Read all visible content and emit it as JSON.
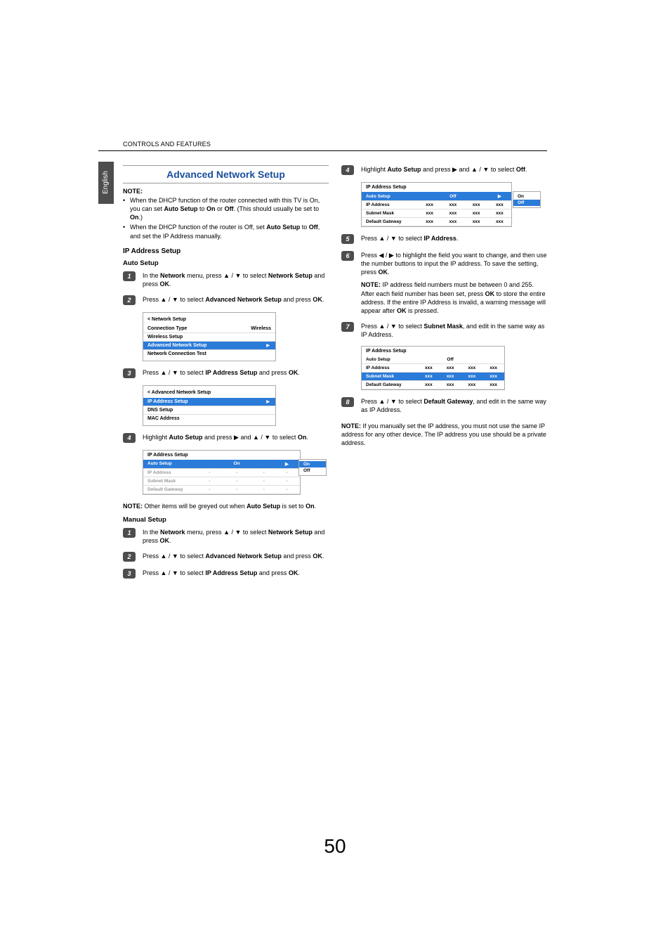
{
  "header": "CONTROLS AND FEATURES",
  "lang_tab": "English",
  "page_number": "50",
  "colors": {
    "title": "#1a4f9c",
    "badge_bg": "#4d4d4d",
    "highlight": "#2b7bd9",
    "text": "#000000",
    "grey": "#999999"
  },
  "left": {
    "title": "Advanced Network Setup",
    "note_label": "NOTE:",
    "note_bullets": [
      "When the DHCP function of the router connected with this TV is On, you can set <b>Auto Setup</b> to <b>On</b> or <b>Off</b>. (This should usually be set to <b>On</b>.)",
      "When the DHCP function of the router is Off, set <b>Auto Setup</b> to <b>Off</b>, and set the IP Address manually."
    ],
    "h_ip": "IP Address Setup",
    "h_auto": "Auto Setup",
    "auto_steps": [
      "In the <b>Network</b> menu, press ▲ / ▼ to select <b>Network Setup</b> and press <b>OK</b>.",
      "Press ▲ / ▼ to select <b>Advanced Network Setup</b> and press <b>OK</b>.",
      "Press ▲ / ▼ to select <b>IP Address Setup</b> and press <b>OK</b>.",
      "Highlight <b>Auto Setup</b> and press ▶ and ▲ / ▼ to select <b>On</b>."
    ],
    "panel_network": {
      "title": "< Network Setup",
      "rows": [
        {
          "label": "Connection Type",
          "value": "Wireless"
        },
        {
          "label": "Wireless Setup",
          "value": ""
        },
        {
          "label": "Advanced Network Setup",
          "value": "",
          "hl": true
        },
        {
          "label": "Network Connection Test",
          "value": ""
        }
      ]
    },
    "panel_advanced": {
      "title": "< Advanced Network Setup",
      "rows": [
        {
          "label": "IP Address Setup",
          "value": "",
          "hl": true
        },
        {
          "label": "DNS Setup",
          "value": ""
        },
        {
          "label": "MAC Address",
          "value": ""
        }
      ]
    },
    "panel_ip_on": {
      "title": "IP Address Setup",
      "popup": [
        "On",
        "Off"
      ],
      "popup_sel": 0,
      "rows": [
        {
          "label": "Auto Setup",
          "v": [
            "",
            "On",
            "",
            ""
          ],
          "hl": true,
          "arrow": true
        },
        {
          "label": "IP Address",
          "v": [
            "-",
            "-",
            "-",
            "-"
          ],
          "grey": true
        },
        {
          "label": "Subnet Mask",
          "v": [
            "-",
            "-",
            "-",
            "-"
          ],
          "grey": true
        },
        {
          "label": "Default Gateway",
          "v": [
            "-",
            "-",
            "-",
            "-"
          ],
          "grey": true
        }
      ]
    },
    "note2": "<b>NOTE:</b> Other items will be greyed out when <b>Auto Setup</b> is set to <b>On</b>.",
    "h_manual": "Manual Setup",
    "manual_steps": [
      "In the <b>Network</b> menu, press ▲ / ▼ to select <b>Network Setup</b> and press <b>OK</b>.",
      "Press ▲ / ▼ to select <b>Advanced Network Setup</b> and press <b>OK</b>.",
      "Press ▲ / ▼ to select <b>IP Address Setup</b> and press <b>OK</b>."
    ]
  },
  "right": {
    "step4": "Highlight <b>Auto Setup</b> and press ▶ and ▲ / ▼ to select <b>Off</b>.",
    "panel_ip_off": {
      "title": "IP Address Setup",
      "popup": [
        "On",
        "Off"
      ],
      "popup_sel": 1,
      "rows": [
        {
          "label": "Auto Setup",
          "v": [
            "",
            "Off",
            "",
            ""
          ],
          "hl": true,
          "arrow": true
        },
        {
          "label": "IP Address",
          "v": [
            "xxx",
            "xxx",
            "xxx",
            "xxx"
          ]
        },
        {
          "label": "Subnet Mask",
          "v": [
            "xxx",
            "xxx",
            "xxx",
            "xxx"
          ]
        },
        {
          "label": "Default Gateway",
          "v": [
            "xxx",
            "xxx",
            "xxx",
            "xxx"
          ]
        }
      ]
    },
    "step5": "Press ▲ / ▼ to select <b>IP Address</b>.",
    "step6": "Press ◀ / ▶ to highlight the field you want to change, and then use the number buttons to input the IP address. To save the setting, press <b>OK</b>.",
    "step6_note": "<b>NOTE:</b> IP address field numbers must be between 0 and 255. After each field number has been set, press <b>OK</b> to store the entire address. If the entire IP Address is invalid, a warning message will appear after <b>OK</b> is pressed.",
    "step7": "Press ▲ / ▼ to select <b>Subnet Mask</b>, and edit in the same way as IP Address.",
    "panel_subnet": {
      "title": "IP Address Setup",
      "rows": [
        {
          "label": "Auto Setup",
          "v": [
            "",
            "Off",
            "",
            ""
          ]
        },
        {
          "label": "IP Address",
          "v": [
            "xxx",
            "xxx",
            "xxx",
            "xxx"
          ]
        },
        {
          "label": "Subnet Mask",
          "v": [
            "xxx",
            "xxx",
            "xxx",
            "xxx"
          ],
          "hl": true
        },
        {
          "label": "Default Gateway",
          "v": [
            "xxx",
            "xxx",
            "xxx",
            "xxx"
          ]
        }
      ]
    },
    "step8": "Press ▲ / ▼ to select <b>Default Gateway</b>, and edit in the same way as IP Address.",
    "final_note": "<b>NOTE:</b> If you manually set the IP address, you must not use the same IP address for any other device. The IP address you use should be a private address."
  }
}
